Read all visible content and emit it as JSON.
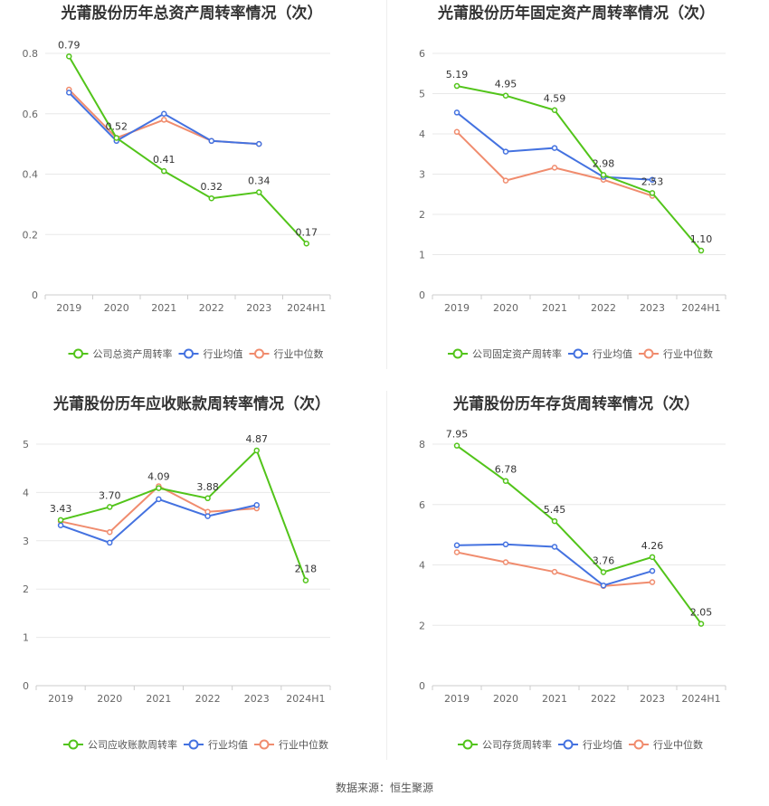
{
  "colors": {
    "company": "#52c41a",
    "industry_avg": "#4472e0",
    "industry_median": "#f08c6e",
    "grid": "#e8e8e8",
    "axis": "#cccccc"
  },
  "source": "数据来源：恒生聚源",
  "chart_data": [
    {
      "type": "line",
      "title": "光莆股份历年总资产周转率情况（次）",
      "categories": [
        "2019",
        "2020",
        "2021",
        "2022",
        "2023",
        "2024H1"
      ],
      "ylim": [
        0,
        0.8
      ],
      "yticks": [
        "0",
        "0.2",
        "0.4",
        "0.6",
        "0.8"
      ],
      "ytick_values": [
        0,
        0.2,
        0.4,
        0.6,
        0.8
      ],
      "grid": true,
      "legend": "bottom",
      "series": [
        {
          "name": "公司总资产周转率",
          "key": "company",
          "values": [
            0.79,
            0.52,
            0.41,
            0.32,
            0.34,
            0.17
          ],
          "labels": [
            "0.79",
            "0.52",
            "0.41",
            "0.32",
            "0.34",
            "0.17"
          ]
        },
        {
          "name": "行业均值",
          "key": "industry_avg",
          "values": [
            0.67,
            0.51,
            0.6,
            0.51,
            0.5,
            null
          ]
        },
        {
          "name": "行业中位数",
          "key": "industry_median",
          "values": [
            0.68,
            0.52,
            0.58,
            0.51,
            0.5,
            null
          ]
        }
      ]
    },
    {
      "type": "line",
      "title": "光莆股份历年固定资产周转率情况（次）",
      "categories": [
        "2019",
        "2020",
        "2021",
        "2022",
        "2023",
        "2024H1"
      ],
      "ylim": [
        0,
        6
      ],
      "yticks": [
        "0",
        "1",
        "2",
        "3",
        "4",
        "5",
        "6"
      ],
      "ytick_values": [
        0,
        1,
        2,
        3,
        4,
        5,
        6
      ],
      "grid": true,
      "legend": "bottom",
      "series": [
        {
          "name": "公司固定资产周转率",
          "key": "company",
          "values": [
            5.19,
            4.95,
            4.59,
            2.98,
            2.53,
            1.1
          ],
          "labels": [
            "5.19",
            "4.95",
            "4.59",
            "2.98",
            "2.53",
            "1.10"
          ]
        },
        {
          "name": "行业均值",
          "key": "industry_avg",
          "values": [
            4.53,
            3.56,
            3.65,
            2.93,
            2.86,
            null
          ]
        },
        {
          "name": "行业中位数",
          "key": "industry_median",
          "values": [
            4.05,
            2.84,
            3.16,
            2.86,
            2.46,
            null
          ]
        }
      ]
    },
    {
      "type": "line",
      "title": "光莆股份历年应收账款周转率情况（次）",
      "categories": [
        "2019",
        "2020",
        "2021",
        "2022",
        "2023",
        "2024H1"
      ],
      "ylim": [
        0,
        5
      ],
      "yticks": [
        "0",
        "1",
        "2",
        "3",
        "4",
        "5"
      ],
      "ytick_values": [
        0,
        1,
        2,
        3,
        4,
        5
      ],
      "grid": true,
      "legend": "bottom",
      "series": [
        {
          "name": "公司应收账款周转率",
          "key": "company",
          "values": [
            3.43,
            3.7,
            4.09,
            3.88,
            4.87,
            2.18
          ],
          "labels": [
            "3.43",
            "3.70",
            "4.09",
            "3.88",
            "4.87",
            "2.18"
          ]
        },
        {
          "name": "行业均值",
          "key": "industry_avg",
          "values": [
            3.32,
            2.96,
            3.86,
            3.51,
            3.74,
            null
          ]
        },
        {
          "name": "行业中位数",
          "key": "industry_median",
          "values": [
            3.4,
            3.18,
            4.13,
            3.6,
            3.67,
            null
          ]
        }
      ]
    },
    {
      "type": "line",
      "title": "光莆股份历年存货周转率情况（次）",
      "categories": [
        "2019",
        "2020",
        "2021",
        "2022",
        "2023",
        "2024H1"
      ],
      "ylim": [
        0,
        8
      ],
      "yticks": [
        "0",
        "2",
        "4",
        "6",
        "8"
      ],
      "ytick_values": [
        0,
        2,
        4,
        6,
        8
      ],
      "grid": true,
      "legend": "bottom",
      "series": [
        {
          "name": "公司存货周转率",
          "key": "company",
          "values": [
            7.95,
            6.78,
            5.45,
            3.76,
            4.26,
            2.05
          ],
          "labels": [
            "7.95",
            "6.78",
            "5.45",
            "3.76",
            "4.26",
            "2.05"
          ]
        },
        {
          "name": "行业均值",
          "key": "industry_avg",
          "values": [
            4.65,
            4.68,
            4.6,
            3.32,
            3.8,
            null
          ]
        },
        {
          "name": "行业中位数",
          "key": "industry_median",
          "values": [
            4.42,
            4.09,
            3.77,
            3.3,
            3.43,
            null
          ]
        }
      ]
    }
  ]
}
